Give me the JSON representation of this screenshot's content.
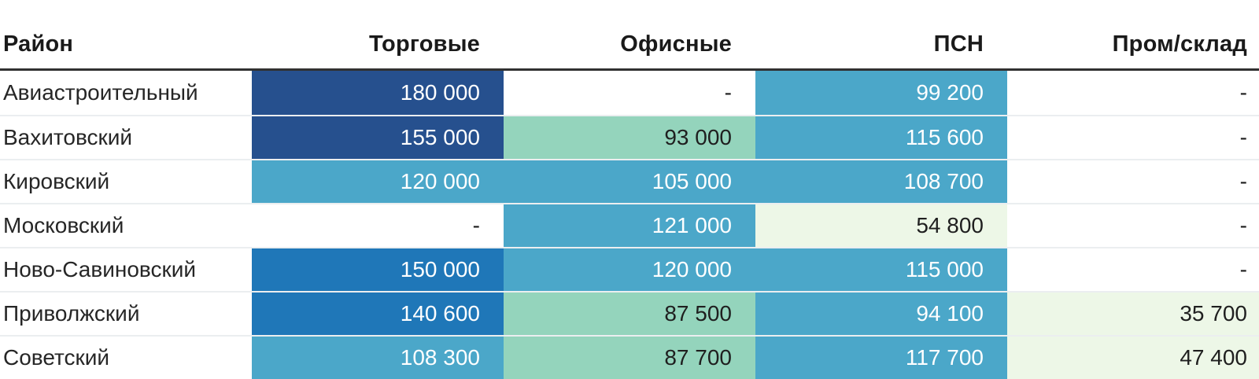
{
  "table": {
    "columns": [
      {
        "label": "Район"
      },
      {
        "label": "Торговые"
      },
      {
        "label": "Офисные"
      },
      {
        "label": "ПСН"
      },
      {
        "label": "Пром/склад"
      }
    ],
    "rows": [
      {
        "district": "Авиастроительный",
        "cells": [
          {
            "value": "180 000",
            "bg": "navy"
          },
          {
            "value": "-",
            "bg": "none"
          },
          {
            "value": "99 200",
            "bg": "blueLight"
          },
          {
            "value": "-",
            "bg": "none"
          }
        ]
      },
      {
        "district": "Вахитовский",
        "cells": [
          {
            "value": "155 000",
            "bg": "navy"
          },
          {
            "value": "93 000",
            "bg": "green"
          },
          {
            "value": "115 600",
            "bg": "blueLight"
          },
          {
            "value": "-",
            "bg": "none"
          }
        ]
      },
      {
        "district": "Кировский",
        "cells": [
          {
            "value": "120 000",
            "bg": "blueLight"
          },
          {
            "value": "105 000",
            "bg": "blueLight"
          },
          {
            "value": "108 700",
            "bg": "blueLight"
          },
          {
            "value": "-",
            "bg": "none"
          }
        ]
      },
      {
        "district": "Московский",
        "cells": [
          {
            "value": "-",
            "bg": "none"
          },
          {
            "value": "121 000",
            "bg": "blueLight"
          },
          {
            "value": "54 800",
            "bg": "greenPale"
          },
          {
            "value": "-",
            "bg": "none"
          }
        ]
      },
      {
        "district": "Ново-Савиновский",
        "cells": [
          {
            "value": "150 000",
            "bg": "blue"
          },
          {
            "value": "120 000",
            "bg": "blueLight"
          },
          {
            "value": "115 000",
            "bg": "blueLight"
          },
          {
            "value": "-",
            "bg": "none"
          }
        ]
      },
      {
        "district": "Приволжский",
        "cells": [
          {
            "value": "140 600",
            "bg": "blue"
          },
          {
            "value": "87 500",
            "bg": "green"
          },
          {
            "value": "94 100",
            "bg": "blueLight"
          },
          {
            "value": "35 700",
            "bg": "greenPale"
          }
        ]
      },
      {
        "district": "Советский",
        "cells": [
          {
            "value": "108 300",
            "bg": "blueLight"
          },
          {
            "value": "87 700",
            "bg": "green"
          },
          {
            "value": "117 700",
            "bg": "blueLight"
          },
          {
            "value": "47 400",
            "bg": "greenPale"
          }
        ]
      }
    ]
  },
  "palette": {
    "navy": "#26508e",
    "blue": "#1f77b8",
    "blueLight": "#4ba7c9",
    "green": "#94d4bc",
    "greenPale": "#edf7e7",
    "none": "#ffffff"
  },
  "text_colors": {
    "navy": "#ffffff",
    "blue": "#ffffff",
    "blueLight": "#ffffff",
    "green": "#1f1f1f",
    "greenPale": "#1f1f1f",
    "none": "#1f1f1f"
  },
  "chart_data": {
    "type": "heatmap",
    "title": "",
    "rows": [
      "Авиастроительный",
      "Вахитовский",
      "Кировский",
      "Московский",
      "Ново-Савиновский",
      "Приволжский",
      "Советский"
    ],
    "columns": [
      "Торговые",
      "Офисные",
      "ПСН",
      "Пром/склад"
    ],
    "values": [
      [
        180000,
        null,
        99200,
        null
      ],
      [
        155000,
        93000,
        115600,
        null
      ],
      [
        120000,
        105000,
        108700,
        null
      ],
      [
        null,
        121000,
        54800,
        null
      ],
      [
        150000,
        120000,
        115000,
        null
      ],
      [
        140600,
        87500,
        94100,
        35700
      ],
      [
        108300,
        87700,
        117700,
        47400
      ]
    ],
    "color_scale": [
      "#edf7e7",
      "#94d4bc",
      "#4ba7c9",
      "#1f77b8",
      "#26508e"
    ],
    "legend": "off",
    "missing_value_marker": "-"
  }
}
